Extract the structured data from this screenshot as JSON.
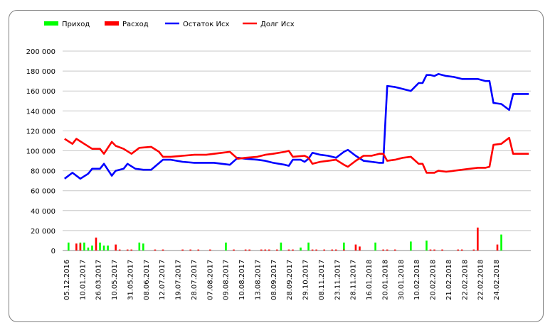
{
  "chart_data": {
    "type": "bar+line",
    "grid": true,
    "legend_placement": "top-left",
    "ylim": [
      0,
      200000
    ],
    "y_ticks": [
      "0",
      "20 000",
      "40 000",
      "60 000",
      "80 000",
      "100 000",
      "120 000",
      "140 000",
      "160 000",
      "180 000",
      "200 000"
    ],
    "x_tick_labels": [
      "05.12.2016",
      "10.01.2017",
      "26.03.2017",
      "10.05.2017",
      "31.05.2017",
      "08.06.2017",
      "12.07.2017",
      "19.07.2017",
      "28.07.2017",
      "07.08.2017",
      "09.08.2017",
      "10.08.2017",
      "13.08.2017",
      "08.09.2017",
      "28.09.2017",
      "29.10.2017",
      "08.11.2017",
      "23.11.2017",
      "28.11.2017",
      "16.01.2018",
      "20.01.2018",
      "30.01.2018",
      "10.02.2018",
      "20.02.2018",
      "21.02.2018",
      "22.02.2018",
      "22.02.2018",
      "24.02.2018"
    ],
    "series": [
      {
        "name": "Приход",
        "type": "bar",
        "color": "#00ff00",
        "points": [
          [
            1,
            8000
          ],
          [
            4,
            8000
          ],
          [
            5,
            8000
          ],
          [
            6,
            3000
          ],
          [
            7,
            5000
          ],
          [
            9,
            8000
          ],
          [
            10,
            5000
          ],
          [
            11,
            5000
          ],
          [
            19,
            8000
          ],
          [
            20,
            7000
          ],
          [
            41,
            8000
          ],
          [
            55,
            8000
          ],
          [
            60,
            3000
          ],
          [
            62,
            8000
          ],
          [
            71,
            8000
          ],
          [
            79,
            8000
          ],
          [
            88,
            9000
          ],
          [
            92,
            10000
          ],
          [
            111,
            16000
          ]
        ]
      },
      {
        "name": "Расход",
        "type": "bar",
        "color": "#ff0000",
        "points": [
          [
            3,
            7000
          ],
          [
            4,
            7000
          ],
          [
            8,
            13000
          ],
          [
            13,
            6000
          ],
          [
            14,
            1000
          ],
          [
            16,
            1000
          ],
          [
            17,
            1000
          ],
          [
            23,
            1000
          ],
          [
            25,
            1000
          ],
          [
            30,
            1000
          ],
          [
            32,
            1000
          ],
          [
            34,
            1000
          ],
          [
            37,
            1000
          ],
          [
            43,
            1000
          ],
          [
            46,
            1000
          ],
          [
            47,
            1000
          ],
          [
            50,
            1000
          ],
          [
            51,
            1000
          ],
          [
            52,
            1000
          ],
          [
            54,
            1000
          ],
          [
            57,
            1000
          ],
          [
            58,
            1000
          ],
          [
            63,
            1000
          ],
          [
            64,
            1000
          ],
          [
            66,
            1000
          ],
          [
            68,
            1000
          ],
          [
            69,
            1000
          ],
          [
            71,
            1000
          ],
          [
            74,
            6000
          ],
          [
            75,
            4000
          ],
          [
            81,
            1000
          ],
          [
            82,
            1000
          ],
          [
            84,
            1000
          ],
          [
            93,
            1000
          ],
          [
            94,
            1000
          ],
          [
            96,
            1000
          ],
          [
            100,
            1000
          ],
          [
            101,
            1000
          ],
          [
            104,
            1000
          ],
          [
            105,
            23000
          ],
          [
            110,
            6000
          ]
        ]
      },
      {
        "name": "Остаток Исх",
        "type": "line",
        "color": "#0000ff",
        "points": [
          [
            0,
            72000
          ],
          [
            2,
            78000
          ],
          [
            4,
            72000
          ],
          [
            6,
            77000
          ],
          [
            7,
            82000
          ],
          [
            9,
            82000
          ],
          [
            10,
            87000
          ],
          [
            12,
            75000
          ],
          [
            13,
            80000
          ],
          [
            15,
            82000
          ],
          [
            16,
            87000
          ],
          [
            18,
            82000
          ],
          [
            20,
            81000
          ],
          [
            22,
            81000
          ],
          [
            25,
            91000
          ],
          [
            27,
            91000
          ],
          [
            30,
            89000
          ],
          [
            33,
            88000
          ],
          [
            36,
            88000
          ],
          [
            38,
            88000
          ],
          [
            40,
            87000
          ],
          [
            42,
            86000
          ],
          [
            44,
            93000
          ],
          [
            46,
            92000
          ],
          [
            49,
            91000
          ],
          [
            51,
            90000
          ],
          [
            53,
            88000
          ],
          [
            56,
            86000
          ],
          [
            57,
            85000
          ],
          [
            58,
            91000
          ],
          [
            60,
            91000
          ],
          [
            61,
            89000
          ],
          [
            62,
            92000
          ],
          [
            63,
            98000
          ],
          [
            65,
            96000
          ],
          [
            67,
            95000
          ],
          [
            69,
            93000
          ],
          [
            71,
            99000
          ],
          [
            72,
            101000
          ],
          [
            74,
            95000
          ],
          [
            76,
            90000
          ],
          [
            78,
            89000
          ],
          [
            80,
            88000
          ],
          [
            81,
            88000
          ],
          [
            82,
            165000
          ],
          [
            84,
            164000
          ],
          [
            86,
            162000
          ],
          [
            88,
            160000
          ],
          [
            90,
            168000
          ],
          [
            91,
            168000
          ],
          [
            92,
            176000
          ],
          [
            93,
            176000
          ],
          [
            94,
            175000
          ],
          [
            95,
            177000
          ],
          [
            97,
            175000
          ],
          [
            99,
            174000
          ],
          [
            101,
            172000
          ],
          [
            103,
            172000
          ],
          [
            105,
            172000
          ],
          [
            107,
            170000
          ],
          [
            108,
            170000
          ],
          [
            109,
            148000
          ],
          [
            111,
            147000
          ],
          [
            113,
            141000
          ],
          [
            114,
            157000
          ],
          [
            116,
            157000
          ],
          [
            118,
            157000
          ]
        ]
      },
      {
        "name": "Долг Исх",
        "type": "line",
        "color": "#ff0000",
        "points": [
          [
            0,
            112000
          ],
          [
            2,
            107000
          ],
          [
            3,
            112000
          ],
          [
            5,
            107000
          ],
          [
            7,
            102000
          ],
          [
            9,
            102000
          ],
          [
            10,
            97000
          ],
          [
            12,
            109000
          ],
          [
            13,
            105000
          ],
          [
            15,
            102000
          ],
          [
            17,
            97000
          ],
          [
            19,
            103000
          ],
          [
            22,
            104000
          ],
          [
            24,
            99000
          ],
          [
            25,
            94000
          ],
          [
            27,
            94000
          ],
          [
            30,
            95000
          ],
          [
            33,
            96000
          ],
          [
            36,
            96000
          ],
          [
            38,
            97000
          ],
          [
            40,
            98000
          ],
          [
            42,
            99000
          ],
          [
            44,
            92000
          ],
          [
            46,
            93000
          ],
          [
            49,
            94000
          ],
          [
            51,
            96000
          ],
          [
            53,
            97000
          ],
          [
            56,
            99000
          ],
          [
            57,
            100000
          ],
          [
            58,
            94000
          ],
          [
            61,
            95000
          ],
          [
            62,
            93000
          ],
          [
            63,
            87000
          ],
          [
            65,
            89000
          ],
          [
            67,
            90000
          ],
          [
            69,
            91000
          ],
          [
            71,
            86000
          ],
          [
            72,
            84000
          ],
          [
            74,
            90000
          ],
          [
            76,
            95000
          ],
          [
            78,
            95000
          ],
          [
            80,
            97000
          ],
          [
            81,
            97000
          ],
          [
            82,
            90000
          ],
          [
            84,
            91000
          ],
          [
            86,
            93000
          ],
          [
            88,
            94000
          ],
          [
            90,
            87000
          ],
          [
            91,
            87000
          ],
          [
            92,
            78000
          ],
          [
            93,
            78000
          ],
          [
            94,
            78000
          ],
          [
            95,
            80000
          ],
          [
            97,
            79000
          ],
          [
            99,
            80000
          ],
          [
            101,
            81000
          ],
          [
            103,
            82000
          ],
          [
            105,
            83000
          ],
          [
            107,
            83000
          ],
          [
            108,
            84000
          ],
          [
            109,
            106000
          ],
          [
            111,
            107000
          ],
          [
            113,
            113000
          ],
          [
            114,
            97000
          ],
          [
            116,
            97000
          ],
          [
            118,
            97000
          ]
        ]
      }
    ]
  }
}
